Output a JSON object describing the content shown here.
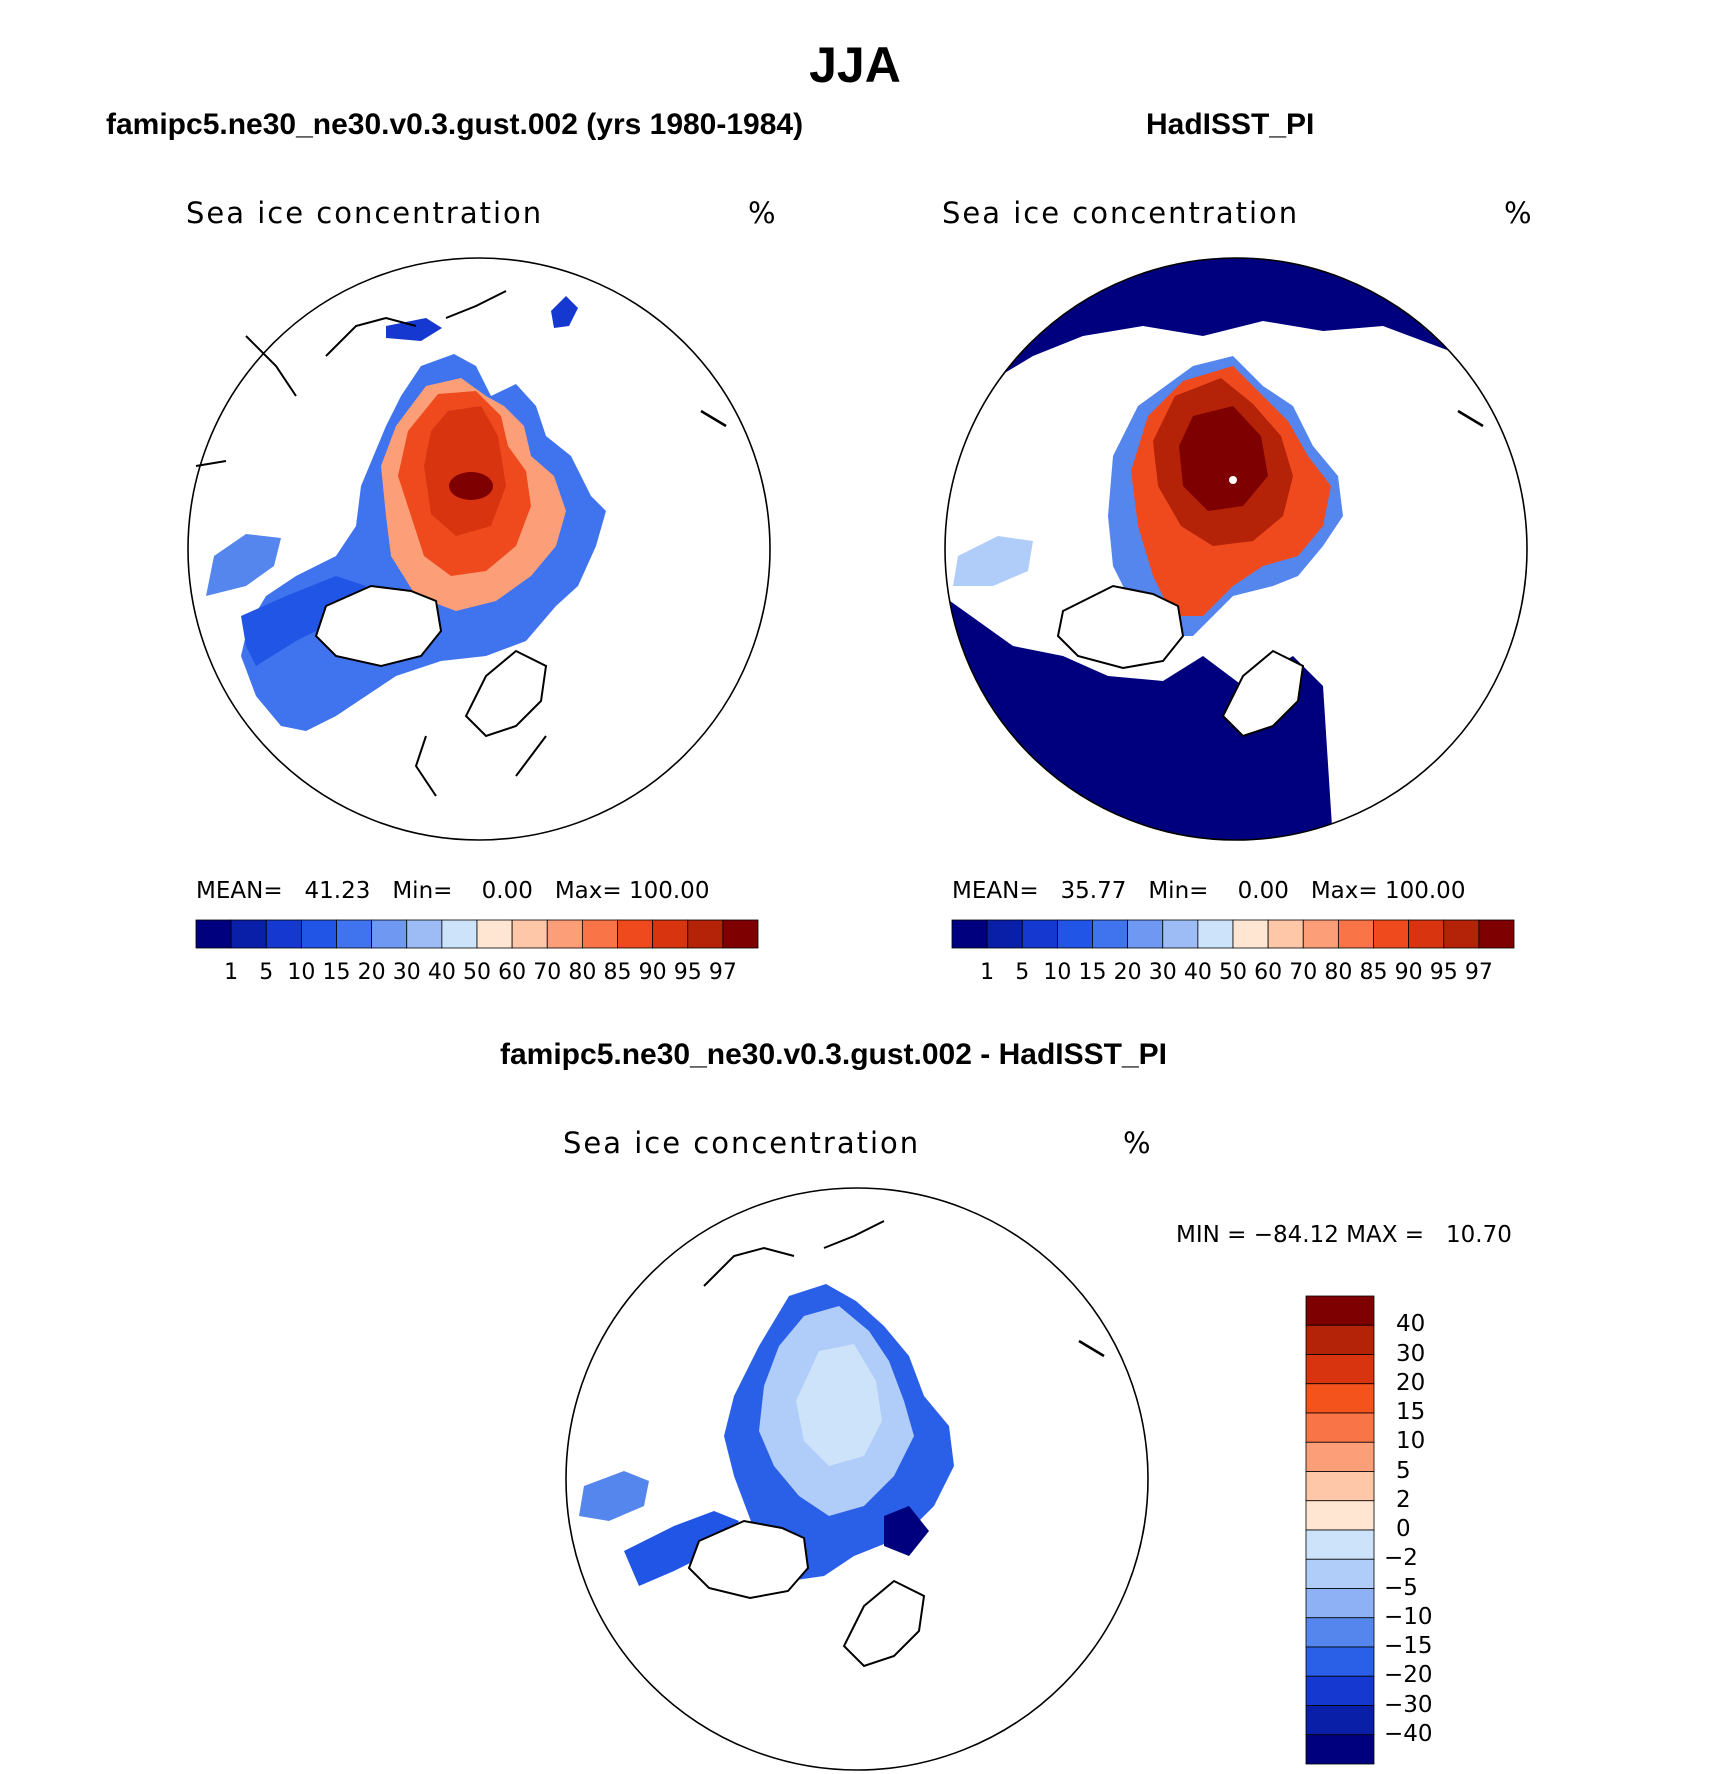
{
  "title": "JJA",
  "panels": [
    {
      "subtitle": "famipc5.ne30_ne30.v0.3.gust.002 (yrs 1980-1984)",
      "variable": "Sea ice concentration",
      "units": "%",
      "mean_label": "MEAN=",
      "mean": "41.23",
      "min_label": "Min=",
      "min": "0.00",
      "max_label": "Max=",
      "max": "100.00"
    },
    {
      "subtitle": "HadISST_PI",
      "variable": "Sea ice concentration",
      "units": "%",
      "mean_label": "MEAN=",
      "mean": "35.77",
      "min_label": "Min=",
      "min": "0.00",
      "max_label": "Max=",
      "max": "100.00"
    },
    {
      "subtitle": "famipc5.ne30_ne30.v0.3.gust.002 - HadISST_PI",
      "variable": "Sea ice concentration",
      "units": "%",
      "minmax": "MIN = −84.12 MAX =   10.70"
    }
  ],
  "colorbar_abs": {
    "levels": [
      "1",
      "5",
      "10",
      "15",
      "20",
      "30",
      "40",
      "50",
      "60",
      "70",
      "80",
      "85",
      "90",
      "95",
      "97"
    ],
    "colors": [
      "#00007f",
      "#0a1fa8",
      "#1538d1",
      "#2155e6",
      "#3f74ee",
      "#6e98f2",
      "#9dbcf6",
      "#cde3fa",
      "#ffe6d3",
      "#fdc7a8",
      "#fc9f78",
      "#f97548",
      "#ef4a1e",
      "#d83410",
      "#b42208",
      "#7f0000"
    ]
  },
  "colorbar_diff": {
    "levels": [
      "40",
      "30",
      "20",
      "15",
      "10",
      "5",
      "2",
      "0",
      "−2",
      "−5",
      "−10",
      "−15",
      "−20",
      "−30",
      "−40"
    ],
    "colors": [
      "#7f0000",
      "#b42208",
      "#d83410",
      "#f5531c",
      "#f97548",
      "#fc9f78",
      "#fdc7a8",
      "#ffe6d3",
      "#cde3fa",
      "#b0ccf8",
      "#8eb0f4",
      "#5586ee",
      "#2a5fe8",
      "#1538d1",
      "#0a1fa8",
      "#00007f"
    ]
  }
}
